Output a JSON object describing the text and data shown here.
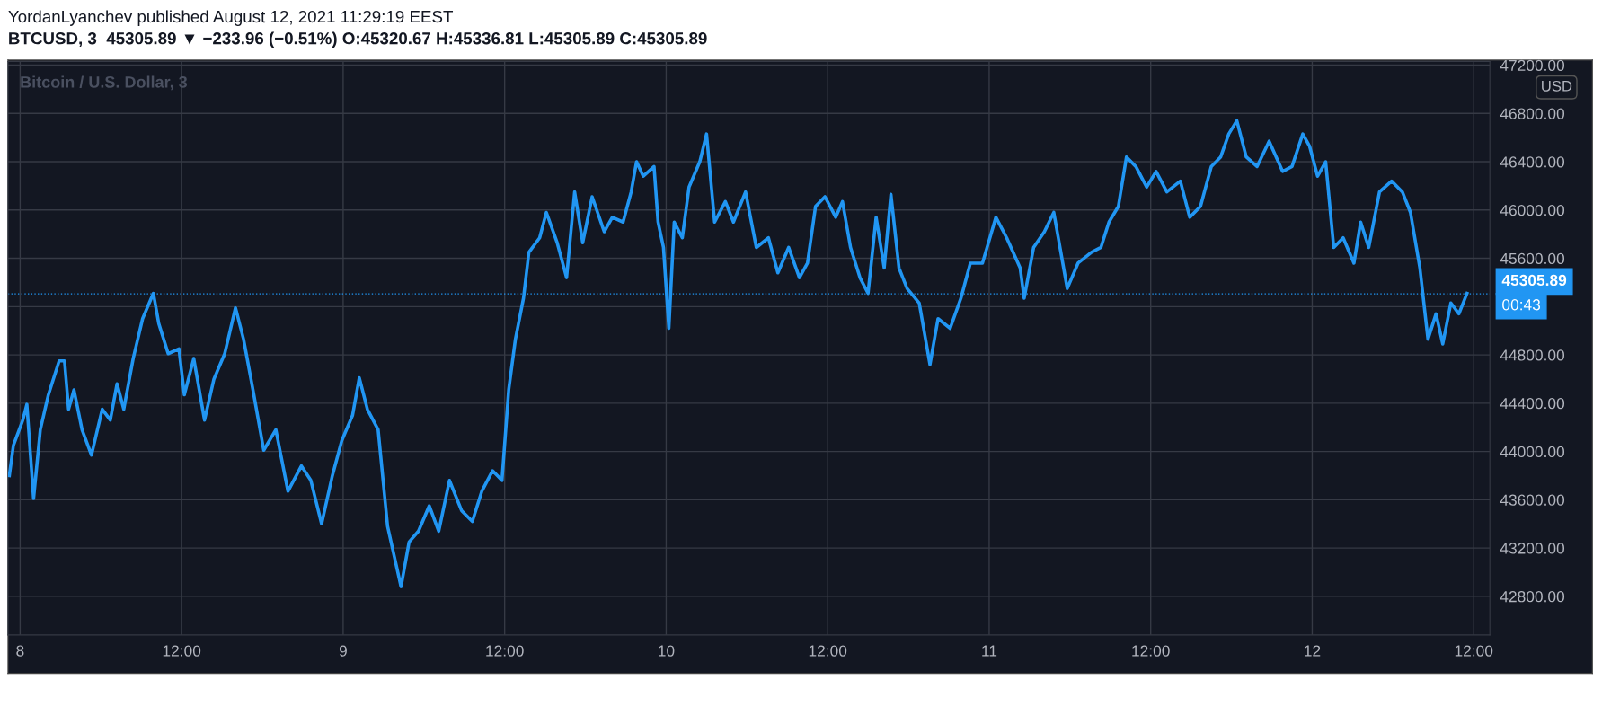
{
  "chart_data": {
    "type": "line",
    "title": "YordanLyanchev published August 12, 2021 11:29:19 EEST",
    "subtitle": "BTCUSD, 3  45305.89 ▼ −233.96 (−0.51%) O:45320.67 H:45336.81 L:45305.89 C:45305.89",
    "annotations": [
      "Bitcoin / U.S. Dollar, 3",
      "USD",
      "00:43"
    ],
    "x": [
      "2021-08-07T23:12",
      "2021-08-07T23:30",
      "2021-08-08T00:12",
      "2021-08-08T00:30",
      "2021-08-08T01:00",
      "2021-08-08T01:30",
      "2021-08-08T02:06",
      "2021-08-08T02:54",
      "2021-08-08T03:18",
      "2021-08-08T03:36",
      "2021-08-08T04:00",
      "2021-08-08T04:36",
      "2021-08-08T05:18",
      "2021-08-08T06:06",
      "2021-08-08T06:42",
      "2021-08-08T07:12",
      "2021-08-08T07:42",
      "2021-08-08T08:24",
      "2021-08-08T09:06",
      "2021-08-08T09:54",
      "2021-08-08T10:18",
      "2021-08-08T11:00",
      "2021-08-08T11:48",
      "2021-08-08T12:12",
      "2021-08-08T12:54",
      "2021-08-08T13:42",
      "2021-08-08T14:24",
      "2021-08-08T15:12",
      "2021-08-08T16:00",
      "2021-08-08T16:36",
      "2021-08-08T17:18",
      "2021-08-08T18:06",
      "2021-08-08T19:00",
      "2021-08-08T19:54",
      "2021-08-08T20:54",
      "2021-08-08T21:36",
      "2021-08-08T22:24",
      "2021-08-08T23:12",
      "2021-08-08T23:54",
      "2021-08-09T00:42",
      "2021-08-09T01:12",
      "2021-08-09T01:48",
      "2021-08-09T02:36",
      "2021-08-09T03:18",
      "2021-08-09T04:18",
      "2021-08-09T04:54",
      "2021-08-09T05:36",
      "2021-08-09T06:24",
      "2021-08-09T07:06",
      "2021-08-09T07:54",
      "2021-08-09T08:48",
      "2021-08-09T09:36",
      "2021-08-09T10:18",
      "2021-08-09T11:06",
      "2021-08-09T11:48",
      "2021-08-09T12:18",
      "2021-08-09T12:48",
      "2021-08-09T13:24",
      "2021-08-09T13:48",
      "2021-08-09T14:36",
      "2021-08-09T15:06",
      "2021-08-09T15:54",
      "2021-08-09T16:36",
      "2021-08-09T17:12",
      "2021-08-09T17:48",
      "2021-08-09T18:30",
      "2021-08-09T19:24",
      "2021-08-09T20:00",
      "2021-08-09T20:48",
      "2021-08-09T21:24",
      "2021-08-09T21:48",
      "2021-08-09T22:18",
      "2021-08-09T23:06",
      "2021-08-09T23:24",
      "2021-08-09T23:48",
      "2021-08-10T00:12",
      "2021-08-10T00:36",
      "2021-08-10T01:12",
      "2021-08-10T01:42",
      "2021-08-10T02:30",
      "2021-08-10T03:00",
      "2021-08-10T03:36",
      "2021-08-10T04:24",
      "2021-08-10T05:00",
      "2021-08-10T05:54",
      "2021-08-10T06:42",
      "2021-08-10T07:36",
      "2021-08-10T08:18",
      "2021-08-10T09:06",
      "2021-08-10T09:54",
      "2021-08-10T10:30",
      "2021-08-10T11:06",
      "2021-08-10T11:48",
      "2021-08-10T12:36",
      "2021-08-10T13:06",
      "2021-08-10T13:42",
      "2021-08-10T14:24",
      "2021-08-10T15:00",
      "2021-08-10T15:36",
      "2021-08-10T16:12",
      "2021-08-10T16:42",
      "2021-08-10T17:18",
      "2021-08-10T17:54",
      "2021-08-10T18:48",
      "2021-08-10T19:36",
      "2021-08-10T20:12",
      "2021-08-10T21:06",
      "2021-08-10T21:54",
      "2021-08-10T22:36",
      "2021-08-10T23:30",
      "2021-08-11T00:30",
      "2021-08-11T01:18",
      "2021-08-11T02:18",
      "2021-08-11T02:36",
      "2021-08-11T03:18",
      "2021-08-11T04:06",
      "2021-08-11T04:48",
      "2021-08-11T05:48",
      "2021-08-11T06:36",
      "2021-08-11T07:36",
      "2021-08-11T08:18",
      "2021-08-11T08:54",
      "2021-08-11T09:36",
      "2021-08-11T10:12",
      "2021-08-11T10:54",
      "2021-08-11T11:42",
      "2021-08-11T12:24",
      "2021-08-11T13:12",
      "2021-08-11T14:12",
      "2021-08-11T14:54",
      "2021-08-11T15:42",
      "2021-08-11T16:30",
      "2021-08-11T17:12",
      "2021-08-11T17:48",
      "2021-08-11T18:24",
      "2021-08-11T19:06",
      "2021-08-11T19:54",
      "2021-08-11T20:48",
      "2021-08-11T21:48",
      "2021-08-11T22:30",
      "2021-08-11T23:18",
      "2021-08-11T23:48",
      "2021-08-12T00:24",
      "2021-08-12T01:00",
      "2021-08-12T01:36",
      "2021-08-12T02:18",
      "2021-08-12T03:06",
      "2021-08-12T03:36",
      "2021-08-12T04:12",
      "2021-08-12T05:00",
      "2021-08-12T05:54",
      "2021-08-12T06:42",
      "2021-08-12T07:18",
      "2021-08-12T08:00",
      "2021-08-12T08:36",
      "2021-08-12T09:12",
      "2021-08-12T09:42",
      "2021-08-12T10:18",
      "2021-08-12T10:54",
      "2021-08-12T11:30"
    ],
    "series": [
      {
        "color": "#2196f3",
        "values": [
          43800,
          44050,
          44260,
          44390,
          43610,
          44180,
          44470,
          44750,
          44750,
          44350,
          44510,
          44180,
          43970,
          44350,
          44260,
          44560,
          44350,
          44770,
          45100,
          45310,
          45060,
          44810,
          44850,
          44470,
          44770,
          44260,
          44600,
          44810,
          45190,
          44930,
          44510,
          44010,
          44180,
          43670,
          43880,
          43760,
          43400,
          43800,
          44090,
          44300,
          44610,
          44350,
          44180,
          43380,
          42880,
          43250,
          43340,
          43550,
          43340,
          43760,
          43510,
          43420,
          43670,
          43840,
          43760,
          44510,
          44930,
          45270,
          45650,
          45770,
          45980,
          45730,
          45440,
          46150,
          45730,
          46110,
          45820,
          45940,
          45900,
          46150,
          46400,
          46280,
          46360,
          45900,
          45690,
          45020,
          45900,
          45770,
          46190,
          46400,
          46630,
          45900,
          46070,
          45900,
          46150,
          45690,
          45770,
          45480,
          45690,
          45440,
          45560,
          46030,
          46110,
          45940,
          46070,
          45690,
          45440,
          45310,
          45940,
          45520,
          46130,
          45520,
          45350,
          45230,
          44720,
          45100,
          45020,
          45270,
          45560,
          45560,
          45940,
          45770,
          45520,
          45270,
          45690,
          45820,
          45980,
          45350,
          45560,
          45650,
          45690,
          45900,
          46030,
          46440,
          46360,
          46190,
          46320,
          46150,
          46240,
          45940,
          46030,
          46360,
          46440,
          46630,
          46740,
          46440,
          46360,
          46570,
          46320,
          46360,
          46630,
          46530,
          46280,
          46400,
          45690,
          45770,
          45560,
          45900,
          45690,
          46150,
          46240,
          46150,
          45980,
          45520,
          44930,
          45140,
          44890,
          45230,
          45140,
          45310
        ]
      }
    ],
    "xlim": [
      "2021-08-07T23:06",
      "2021-08-12T13:12"
    ],
    "xticks": [
      {
        "value": "2021-08-08",
        "label": "8"
      },
      {
        "value": "2021-08-08T12:00",
        "label": "12:00"
      },
      {
        "value": "2021-08-09",
        "label": "9"
      },
      {
        "value": "2021-08-09T12:00",
        "label": "12:00"
      },
      {
        "value": "2021-08-10",
        "label": "10"
      },
      {
        "value": "2021-08-10T12:00",
        "label": "12:00"
      },
      {
        "value": "2021-08-11",
        "label": "11"
      },
      {
        "value": "2021-08-11T12:00",
        "label": "12:00"
      },
      {
        "value": "2021-08-12",
        "label": "12"
      },
      {
        "value": "2021-08-12T12:00",
        "label": "12:00"
      }
    ],
    "ylim": [
      42480,
      47230
    ],
    "yticks": [
      {
        "value": 42800,
        "label": "42800.00"
      },
      {
        "value": 43200,
        "label": "43200.00"
      },
      {
        "value": 43600,
        "label": "43600.00"
      },
      {
        "value": 44000,
        "label": "44000.00"
      },
      {
        "value": 44400,
        "label": "44400.00"
      },
      {
        "value": 44800,
        "label": "44800.00"
      },
      {
        "value": 45200,
        "label": null
      },
      {
        "value": 45600,
        "label": "45600.00"
      },
      {
        "value": 46000,
        "label": "46000.00"
      },
      {
        "value": 46400,
        "label": "46400.00"
      },
      {
        "value": 46800,
        "label": "46800.00"
      },
      {
        "value": 47200,
        "label": "47200.00"
      }
    ],
    "ref_lines": [
      {
        "axis": "y",
        "value": 45305.89,
        "label": "45305.89",
        "color": "#2196f3",
        "line_style": "dotted"
      }
    ],
    "grid": true,
    "legend": false,
    "line_style": "solid",
    "marker": "none"
  }
}
